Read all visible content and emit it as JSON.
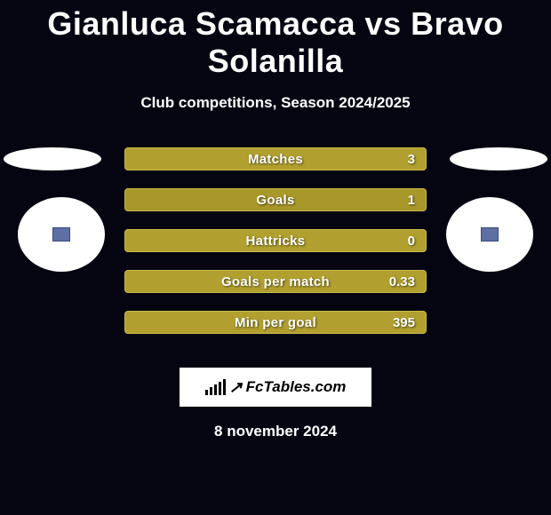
{
  "title": "Gianluca Scamacca vs Bravo Solanilla",
  "subtitle": "Club competitions, Season 2024/2025",
  "date": "8 november 2024",
  "logo_text": "FcTables.com",
  "colors": {
    "background": "#050512",
    "bar_primary": "#b1a02f",
    "bar_primary_alt": "#c0af3a",
    "bar_border": "#c9b947",
    "text": "#ffffff",
    "avatar_bg": "#ffffff",
    "chip_fill": "#5e6fa3"
  },
  "stats": [
    {
      "label": "Matches",
      "value": "3",
      "fill_pct": 100,
      "fill_color": "#b1a02f",
      "border_color": "#c9b947"
    },
    {
      "label": "Goals",
      "value": "1",
      "fill_pct": 100,
      "fill_color": "#a89729",
      "border_color": "#c9b947"
    },
    {
      "label": "Hattricks",
      "value": "0",
      "fill_pct": 100,
      "fill_color": "#b1a02f",
      "border_color": "#c9b947"
    },
    {
      "label": "Goals per match",
      "value": "0.33",
      "fill_pct": 100,
      "fill_color": "#b1a02f",
      "border_color": "#c9b947"
    },
    {
      "label": "Min per goal",
      "value": "395",
      "fill_pct": 100,
      "fill_color": "#b1a02f",
      "border_color": "#c9b947"
    }
  ]
}
